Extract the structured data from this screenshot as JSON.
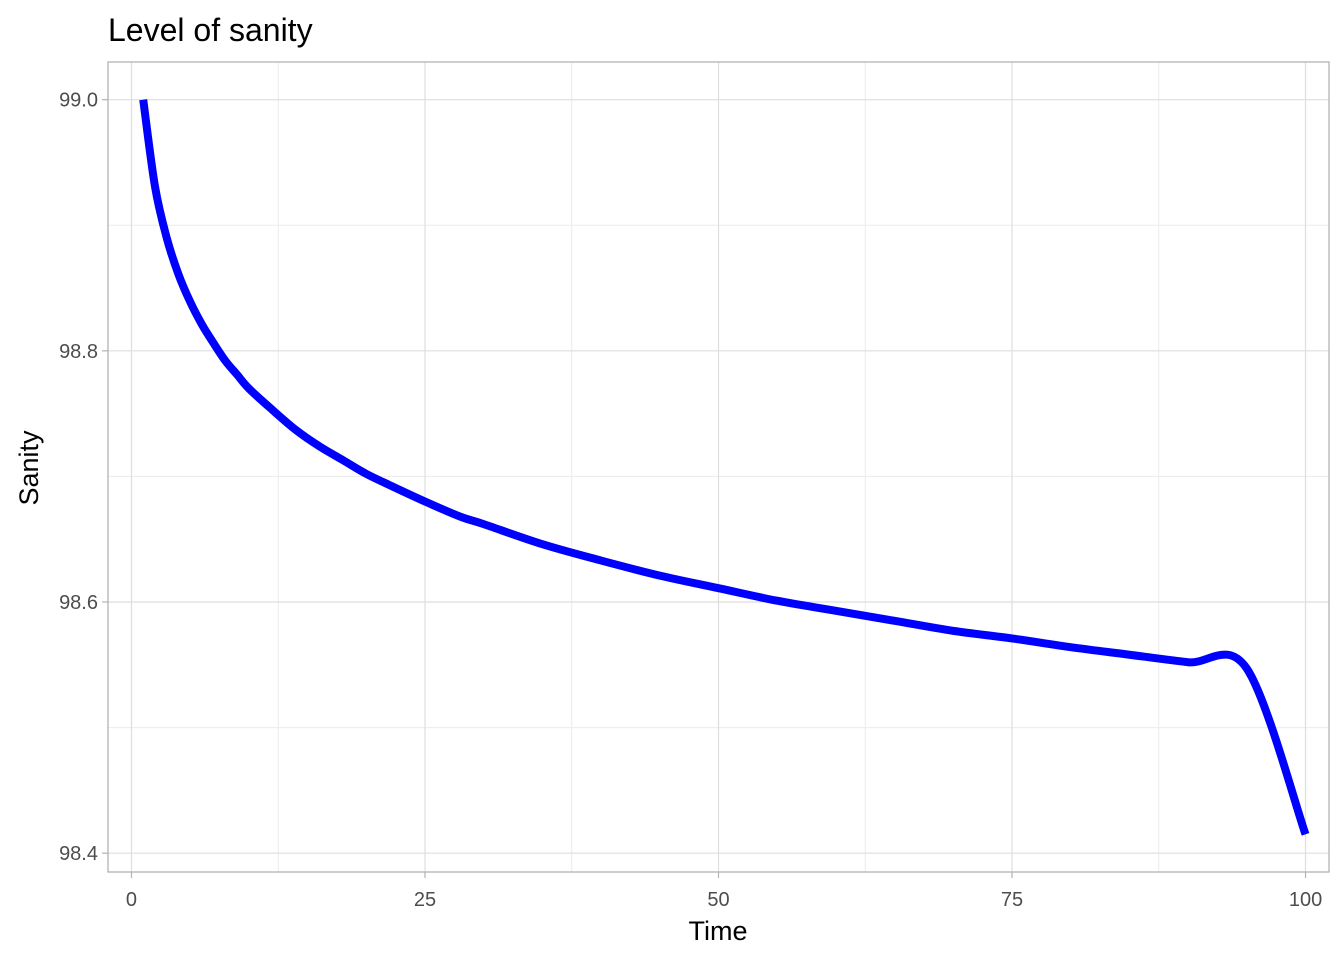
{
  "chart_data": {
    "type": "line",
    "title": "Level of sanity",
    "xlabel": "Time",
    "ylabel": "Sanity",
    "xlim": [
      -2,
      102
    ],
    "ylim": [
      98.385,
      99.03
    ],
    "x_ticks": [
      0,
      25,
      50,
      75,
      100
    ],
    "x_tick_labels": [
      "0",
      "25",
      "50",
      "75",
      "100"
    ],
    "y_ticks": [
      98.4,
      98.6,
      98.8,
      99.0
    ],
    "y_tick_labels": [
      "98.4",
      "98.6",
      "98.8",
      "99.0"
    ],
    "grid": true,
    "legend": "none",
    "series": [
      {
        "color": "#0000ff",
        "x": [
          1,
          2,
          3,
          4,
          5,
          6,
          7,
          8,
          9,
          10,
          12,
          14,
          16,
          18,
          20,
          22,
          25,
          28,
          30,
          35,
          40,
          45,
          50,
          55,
          60,
          65,
          70,
          75,
          80,
          85,
          90,
          95,
          100
        ],
        "y": [
          99.0,
          98.931,
          98.89,
          98.861,
          98.839,
          98.821,
          98.806,
          98.792,
          98.781,
          98.77,
          98.753,
          98.737,
          98.724,
          98.713,
          98.702,
          98.693,
          98.68,
          98.668,
          98.662,
          98.646,
          98.633,
          98.621,
          98.611,
          98.601,
          98.593,
          98.585,
          98.577,
          98.571,
          98.564,
          98.558,
          98.552,
          98.547,
          98.415
        ]
      }
    ]
  }
}
